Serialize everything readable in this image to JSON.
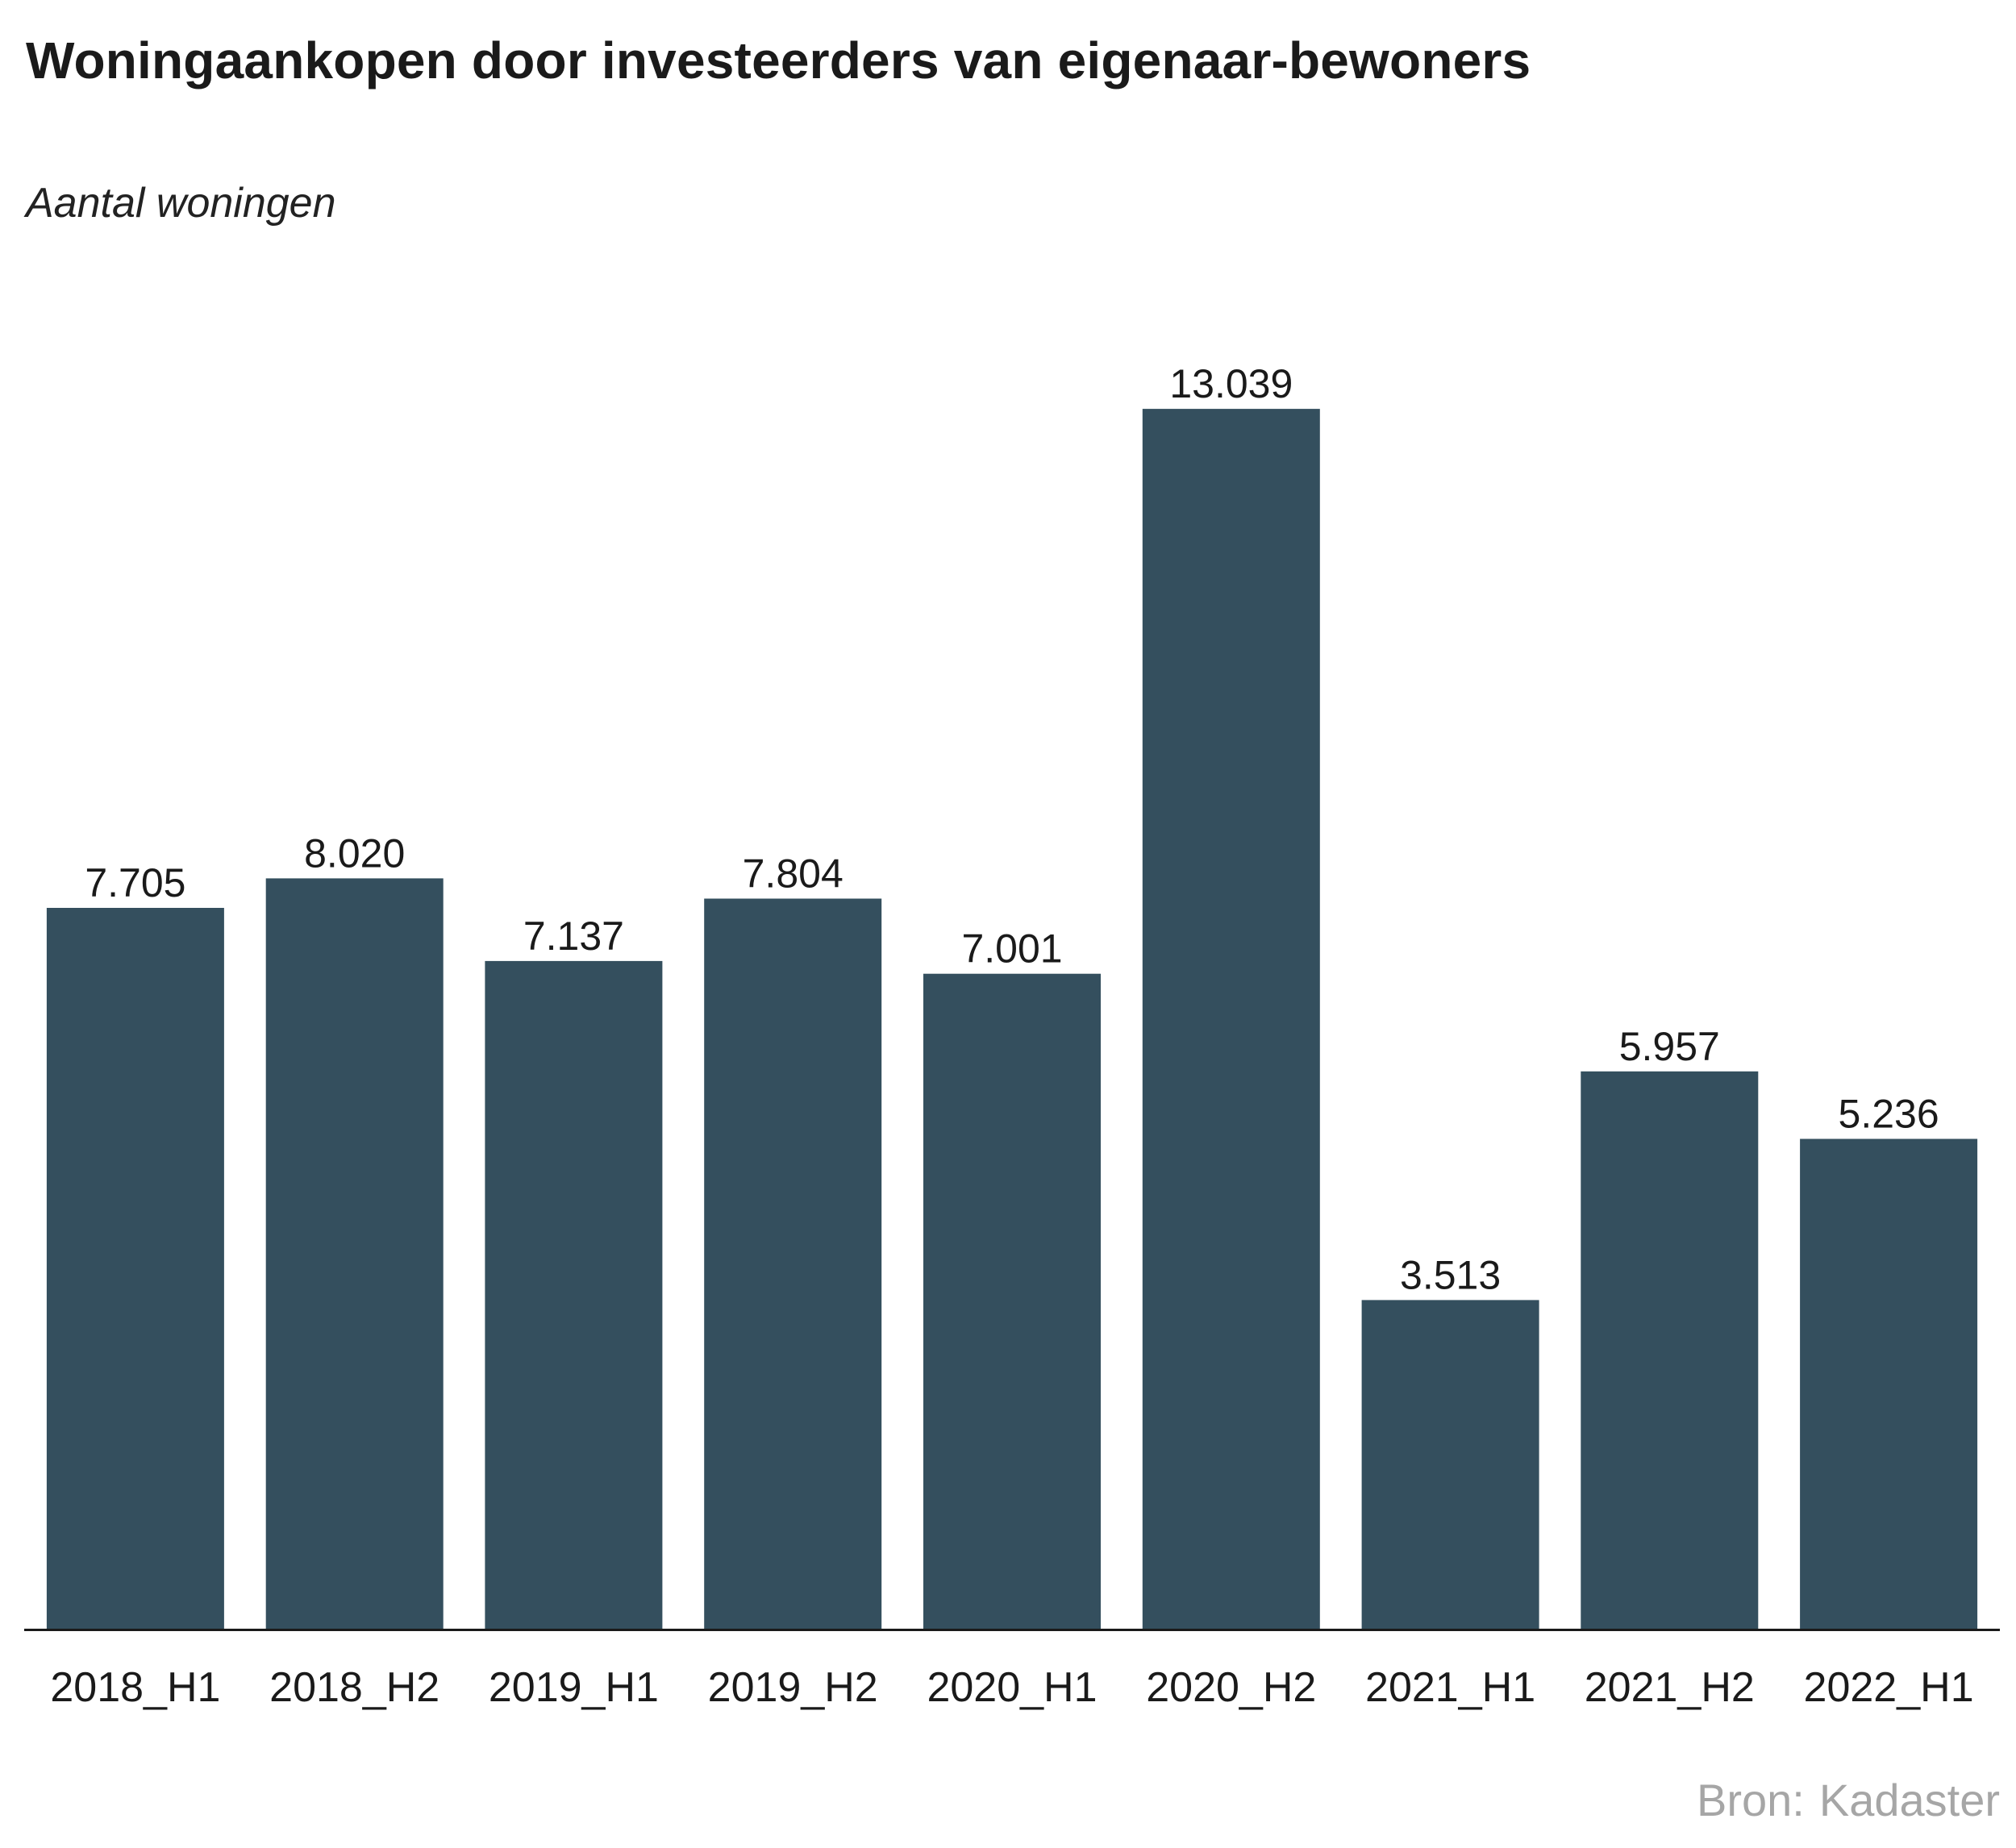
{
  "title": "Woningaankopen door investeerders van eigenaar-bewoners",
  "subtitle": "Aantal woningen",
  "source": {
    "label": "Bron:",
    "name": "Kadaster"
  },
  "colors": {
    "bar": "#344f5e",
    "axis": "#1a1a1a",
    "label": "#1a1a1a",
    "source": "#a6a6a6"
  },
  "chart_data": {
    "type": "bar",
    "categories": [
      "2018_H1",
      "2018_H2",
      "2019_H1",
      "2019_H2",
      "2020_H1",
      "2020_H2",
      "2021_H1",
      "2021_H2",
      "2022_H1"
    ],
    "values": [
      7705,
      8020,
      7137,
      7804,
      7001,
      13039,
      3513,
      5957,
      5236
    ],
    "data_labels": [
      "7.705",
      "8.020",
      "7.137",
      "7.804",
      "7.001",
      "13.039",
      "3.513",
      "5.957",
      "5.236"
    ],
    "title": "Woningaankopen door investeerders van eigenaar-bewoners",
    "ylabel": "Aantal woningen",
    "xlabel": "",
    "grid": false,
    "legend": "none"
  }
}
